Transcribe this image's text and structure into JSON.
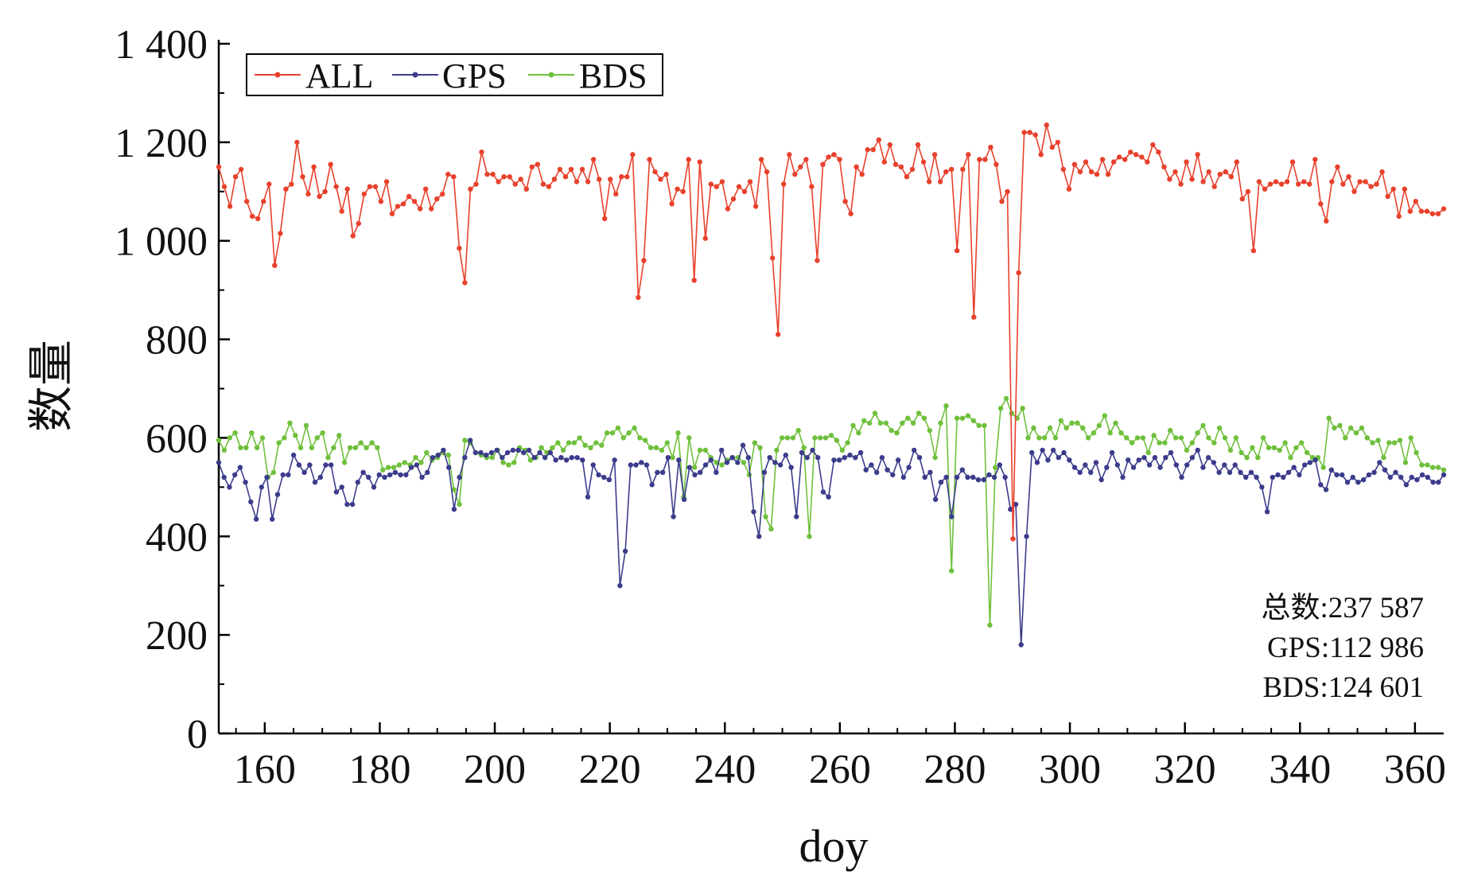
{
  "chart_data": {
    "type": "line",
    "xlabel": "doy",
    "ylabel": "数量",
    "xlim": [
      152,
      365
    ],
    "ylim": [
      0,
      1400
    ],
    "xticks": [
      160,
      180,
      200,
      220,
      240,
      260,
      280,
      300,
      320,
      340,
      360
    ],
    "yticks": [
      0,
      200,
      400,
      600,
      800,
      1000,
      1200,
      1400
    ],
    "xtick_labels": [
      "160",
      "180",
      "200",
      "220",
      "240",
      "260",
      "280",
      "300",
      "320",
      "340",
      "360"
    ],
    "ytick_labels": [
      "0",
      "200",
      "400",
      "600",
      "800",
      "1 000",
      "1 200",
      "1 400"
    ],
    "legend_position": "top-left",
    "grid": false,
    "x_start": 152,
    "x_end": 365,
    "series": [
      {
        "name": "ALL",
        "color": "#e8412c",
        "values": [
          1150,
          1110,
          1070,
          1130,
          1145,
          1080,
          1050,
          1045,
          1080,
          1115,
          950,
          1015,
          1105,
          1115,
          1200,
          1130,
          1095,
          1150,
          1090,
          1100,
          1155,
          1110,
          1060,
          1105,
          1010,
          1035,
          1095,
          1110,
          1110,
          1080,
          1120,
          1055,
          1070,
          1075,
          1090,
          1080,
          1065,
          1105,
          1065,
          1085,
          1095,
          1135,
          1130,
          985,
          915,
          1105,
          1115,
          1180,
          1135,
          1135,
          1120,
          1130,
          1130,
          1115,
          1125,
          1105,
          1150,
          1155,
          1115,
          1110,
          1125,
          1145,
          1130,
          1145,
          1120,
          1145,
          1120,
          1165,
          1125,
          1045,
          1125,
          1095,
          1130,
          1130,
          1175,
          885,
          960,
          1165,
          1140,
          1125,
          1135,
          1075,
          1105,
          1100,
          1165,
          920,
          1160,
          1005,
          1115,
          1110,
          1120,
          1065,
          1085,
          1110,
          1100,
          1120,
          1070,
          1165,
          1140,
          965,
          810,
          1115,
          1175,
          1135,
          1150,
          1165,
          1110,
          960,
          1155,
          1170,
          1175,
          1165,
          1080,
          1055,
          1150,
          1135,
          1185,
          1185,
          1205,
          1160,
          1195,
          1155,
          1150,
          1130,
          1145,
          1195,
          1160,
          1120,
          1175,
          1120,
          1140,
          1145,
          980,
          1145,
          1175,
          845,
          1165,
          1165,
          1190,
          1155,
          1080,
          1100,
          395,
          935,
          1220,
          1220,
          1215,
          1175,
          1235,
          1190,
          1200,
          1145,
          1105,
          1155,
          1140,
          1160,
          1140,
          1135,
          1165,
          1135,
          1160,
          1170,
          1165,
          1180,
          1175,
          1170,
          1160,
          1195,
          1180,
          1150,
          1125,
          1140,
          1115,
          1160,
          1125,
          1175,
          1120,
          1140,
          1110,
          1135,
          1140,
          1130,
          1160,
          1085,
          1100,
          980,
          1120,
          1105,
          1115,
          1120,
          1115,
          1120,
          1160,
          1115,
          1120,
          1115,
          1165,
          1075,
          1040,
          1120,
          1150,
          1115,
          1130,
          1100,
          1120,
          1120,
          1110,
          1115,
          1140,
          1090,
          1105,
          1050,
          1105,
          1060,
          1080,
          1060,
          1060,
          1055,
          1055,
          1065
        ]
      },
      {
        "name": "GPS",
        "color": "#3c3c8c",
        "values": [
          550,
          520,
          500,
          525,
          540,
          510,
          470,
          435,
          500,
          520,
          435,
          485,
          525,
          525,
          565,
          545,
          530,
          545,
          510,
          520,
          545,
          545,
          490,
          500,
          465,
          465,
          510,
          530,
          520,
          500,
          525,
          520,
          525,
          530,
          525,
          525,
          540,
          545,
          520,
          530,
          560,
          565,
          575,
          540,
          455,
          520,
          560,
          595,
          570,
          570,
          565,
          570,
          575,
          560,
          570,
          575,
          575,
          570,
          575,
          560,
          570,
          560,
          570,
          555,
          560,
          555,
          560,
          560,
          555,
          480,
          545,
          525,
          520,
          515,
          555,
          300,
          370,
          545,
          545,
          550,
          545,
          505,
          530,
          530,
          560,
          440,
          555,
          475,
          540,
          525,
          530,
          545,
          555,
          530,
          575,
          550,
          560,
          550,
          585,
          560,
          450,
          400,
          530,
          560,
          550,
          545,
          565,
          540,
          440,
          570,
          560,
          575,
          560,
          490,
          480,
          555,
          555,
          560,
          565,
          560,
          570,
          535,
          545,
          530,
          560,
          535,
          525,
          555,
          520,
          540,
          575,
          560,
          520,
          530,
          475,
          510,
          520,
          440,
          520,
          535,
          520,
          520,
          515,
          515,
          525,
          520,
          545,
          520,
          455,
          465,
          180,
          400,
          570,
          550,
          575,
          555,
          575,
          560,
          570,
          555,
          540,
          530,
          545,
          530,
          550,
          515,
          540,
          570,
          545,
          520,
          555,
          540,
          555,
          560,
          545,
          560,
          540,
          560,
          570,
          545,
          520,
          545,
          560,
          575,
          540,
          560,
          550,
          530,
          545,
          530,
          545,
          530,
          520,
          530,
          520,
          500,
          450,
          520,
          525,
          520,
          530,
          540,
          525,
          545,
          550,
          555,
          505,
          495,
          535,
          525,
          525,
          510,
          520,
          510,
          515,
          525,
          530,
          550,
          535,
          520,
          530,
          520,
          505,
          520,
          515,
          525,
          520,
          510,
          510,
          525
        ]
      },
      {
        "name": "BDS",
        "color": "#6fc03c",
        "values": [
          595,
          575,
          600,
          610,
          580,
          580,
          610,
          580,
          600,
          520,
          530,
          590,
          600,
          630,
          605,
          580,
          625,
          580,
          600,
          610,
          560,
          580,
          605,
          550,
          580,
          580,
          590,
          580,
          590,
          580,
          535,
          540,
          540,
          545,
          550,
          545,
          560,
          550,
          570,
          555,
          560,
          570,
          565,
          495,
          465,
          595,
          590,
          570,
          565,
          560,
          560,
          575,
          550,
          545,
          550,
          580,
          575,
          555,
          560,
          580,
          570,
          580,
          590,
          575,
          590,
          590,
          600,
          585,
          580,
          590,
          585,
          610,
          610,
          620,
          600,
          610,
          620,
          600,
          595,
          580,
          580,
          575,
          590,
          560,
          610,
          480,
          600,
          540,
          575,
          575,
          560,
          550,
          545,
          555,
          560,
          560,
          550,
          525,
          590,
          580,
          440,
          415,
          575,
          600,
          600,
          600,
          615,
          580,
          400,
          600,
          600,
          600,
          605,
          595,
          575,
          590,
          625,
          610,
          635,
          630,
          650,
          630,
          630,
          615,
          610,
          630,
          640,
          630,
          650,
          640,
          615,
          560,
          630,
          665,
          330,
          640,
          640,
          645,
          635,
          625,
          625,
          220,
          540,
          660,
          680,
          650,
          640,
          660,
          600,
          620,
          600,
          600,
          620,
          600,
          635,
          620,
          630,
          630,
          620,
          600,
          610,
          625,
          645,
          610,
          630,
          610,
          600,
          590,
          600,
          600,
          570,
          605,
          590,
          590,
          615,
          600,
          600,
          575,
          590,
          610,
          625,
          600,
          590,
          620,
          600,
          575,
          600,
          570,
          560,
          580,
          560,
          600,
          580,
          580,
          575,
          590,
          560,
          580,
          590,
          570,
          560,
          560,
          540,
          640,
          620,
          625,
          600,
          620,
          610,
          620,
          600,
          590,
          595,
          560,
          590,
          590,
          595,
          550,
          600,
          570,
          545,
          545,
          540,
          540,
          535
        ]
      }
    ],
    "annotations": [
      "总数:237 587",
      "GPS:112 986",
      "BDS:124 601"
    ]
  }
}
